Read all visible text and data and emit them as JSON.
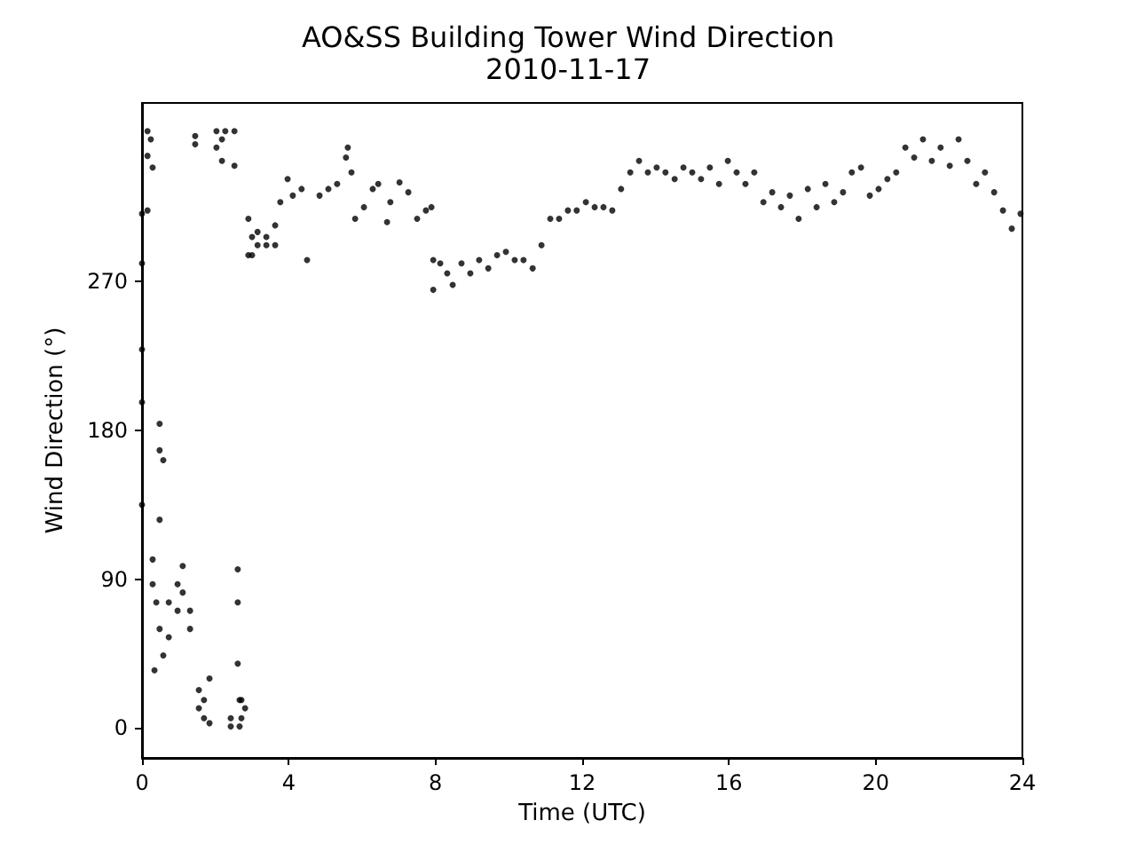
{
  "chart_data": {
    "type": "scatter",
    "title": "AO&SS Building Tower Wind Direction",
    "subtitle": "2010-11-17",
    "xlabel": "Time (UTC)",
    "ylabel": "Wind Direction (°)",
    "series": [
      {
        "color": "#000000",
        "x": [
          0,
          0,
          0,
          0,
          0,
          0.15,
          0.15,
          0.15,
          0.24,
          0.29,
          0.29,
          0.29,
          0.34,
          0.39,
          0.48,
          0.48,
          0.48,
          0.48,
          0.58,
          0.58,
          0.73,
          0.73,
          0.97,
          0.97,
          1.11,
          1.11,
          1.31,
          1.31,
          1.45,
          1.45,
          1.55,
          1.55,
          1.69,
          1.69,
          1.84,
          1.84,
          2.03,
          2.03,
          2.18,
          2.18,
          2.27,
          2.42,
          2.42,
          2.52,
          2.52,
          2.61,
          2.61,
          2.61,
          2.66,
          2.66,
          2.71,
          2.71,
          2.81,
          2.9,
          2.9,
          3.0,
          3.0,
          3.15,
          3.15,
          3.39,
          3.39,
          3.63,
          3.63,
          3.77,
          3.97,
          4.11,
          4.35,
          4.5,
          4.84,
          5.08,
          5.32,
          5.56,
          5.61,
          5.71,
          5.81,
          6.05,
          6.29,
          6.44,
          6.68,
          6.77,
          7.02,
          7.26,
          7.5,
          7.74,
          7.89,
          7.94,
          7.94,
          8.13,
          8.32,
          8.47,
          8.71,
          8.95,
          9.19,
          9.44,
          9.68,
          9.92,
          10.16,
          10.4,
          10.65,
          10.89,
          11.13,
          11.37,
          11.61,
          11.85,
          12.1,
          12.34,
          12.58,
          12.82,
          13.06,
          13.31,
          13.55,
          13.79,
          14.03,
          14.27,
          14.52,
          14.76,
          15.0,
          15.24,
          15.48,
          15.73,
          15.97,
          16.21,
          16.45,
          16.69,
          16.94,
          17.18,
          17.42,
          17.66,
          17.9,
          18.15,
          18.39,
          18.63,
          18.87,
          19.11,
          19.35,
          19.6,
          19.84,
          20.08,
          20.32,
          20.56,
          20.81,
          21.05,
          21.29,
          21.53,
          21.77,
          22.02,
          22.26,
          22.5,
          22.74,
          22.98,
          23.23,
          23.47,
          23.71,
          23.95
        ],
        "values": [
          311,
          281,
          229,
          197,
          135,
          361,
          346,
          313,
          356,
          339,
          102,
          87,
          35,
          76,
          184,
          168,
          126,
          60,
          162,
          44,
          76,
          55,
          87,
          71,
          98,
          82,
          60,
          71,
          358,
          353,
          23,
          12,
          6,
          17,
          30,
          3,
          361,
          351,
          343,
          356,
          361,
          6,
          1,
          361,
          340,
          96,
          76,
          39,
          1,
          17,
          17,
          6,
          12,
          308,
          286,
          297,
          286,
          292,
          300,
          297,
          292,
          304,
          292,
          318,
          332,
          322,
          326,
          283,
          322,
          326,
          329,
          345,
          351,
          336,
          308,
          315,
          326,
          329,
          306,
          318,
          330,
          324,
          308,
          313,
          315,
          283,
          265,
          281,
          275,
          268,
          281,
          275,
          283,
          278,
          286,
          288,
          283,
          283,
          278,
          292,
          308,
          308,
          313,
          313,
          318,
          315,
          315,
          313,
          326,
          336,
          343,
          336,
          339,
          336,
          332,
          339,
          336,
          332,
          339,
          329,
          343,
          336,
          329,
          336,
          318,
          324,
          315,
          322,
          308,
          326,
          315,
          329,
          318,
          324,
          336,
          339,
          322,
          326,
          332,
          336,
          351,
          345,
          356,
          343,
          351,
          340,
          356,
          343,
          329,
          336,
          324,
          313,
          302,
          311
        ]
      }
    ],
    "marker": "circle",
    "grid": false,
    "xlim": [
      0,
      24
    ],
    "xticks": [
      0,
      4,
      8,
      12,
      16,
      20,
      24
    ],
    "ylim": [
      -18,
      378
    ],
    "yticks": [
      0,
      90,
      180,
      270
    ]
  }
}
